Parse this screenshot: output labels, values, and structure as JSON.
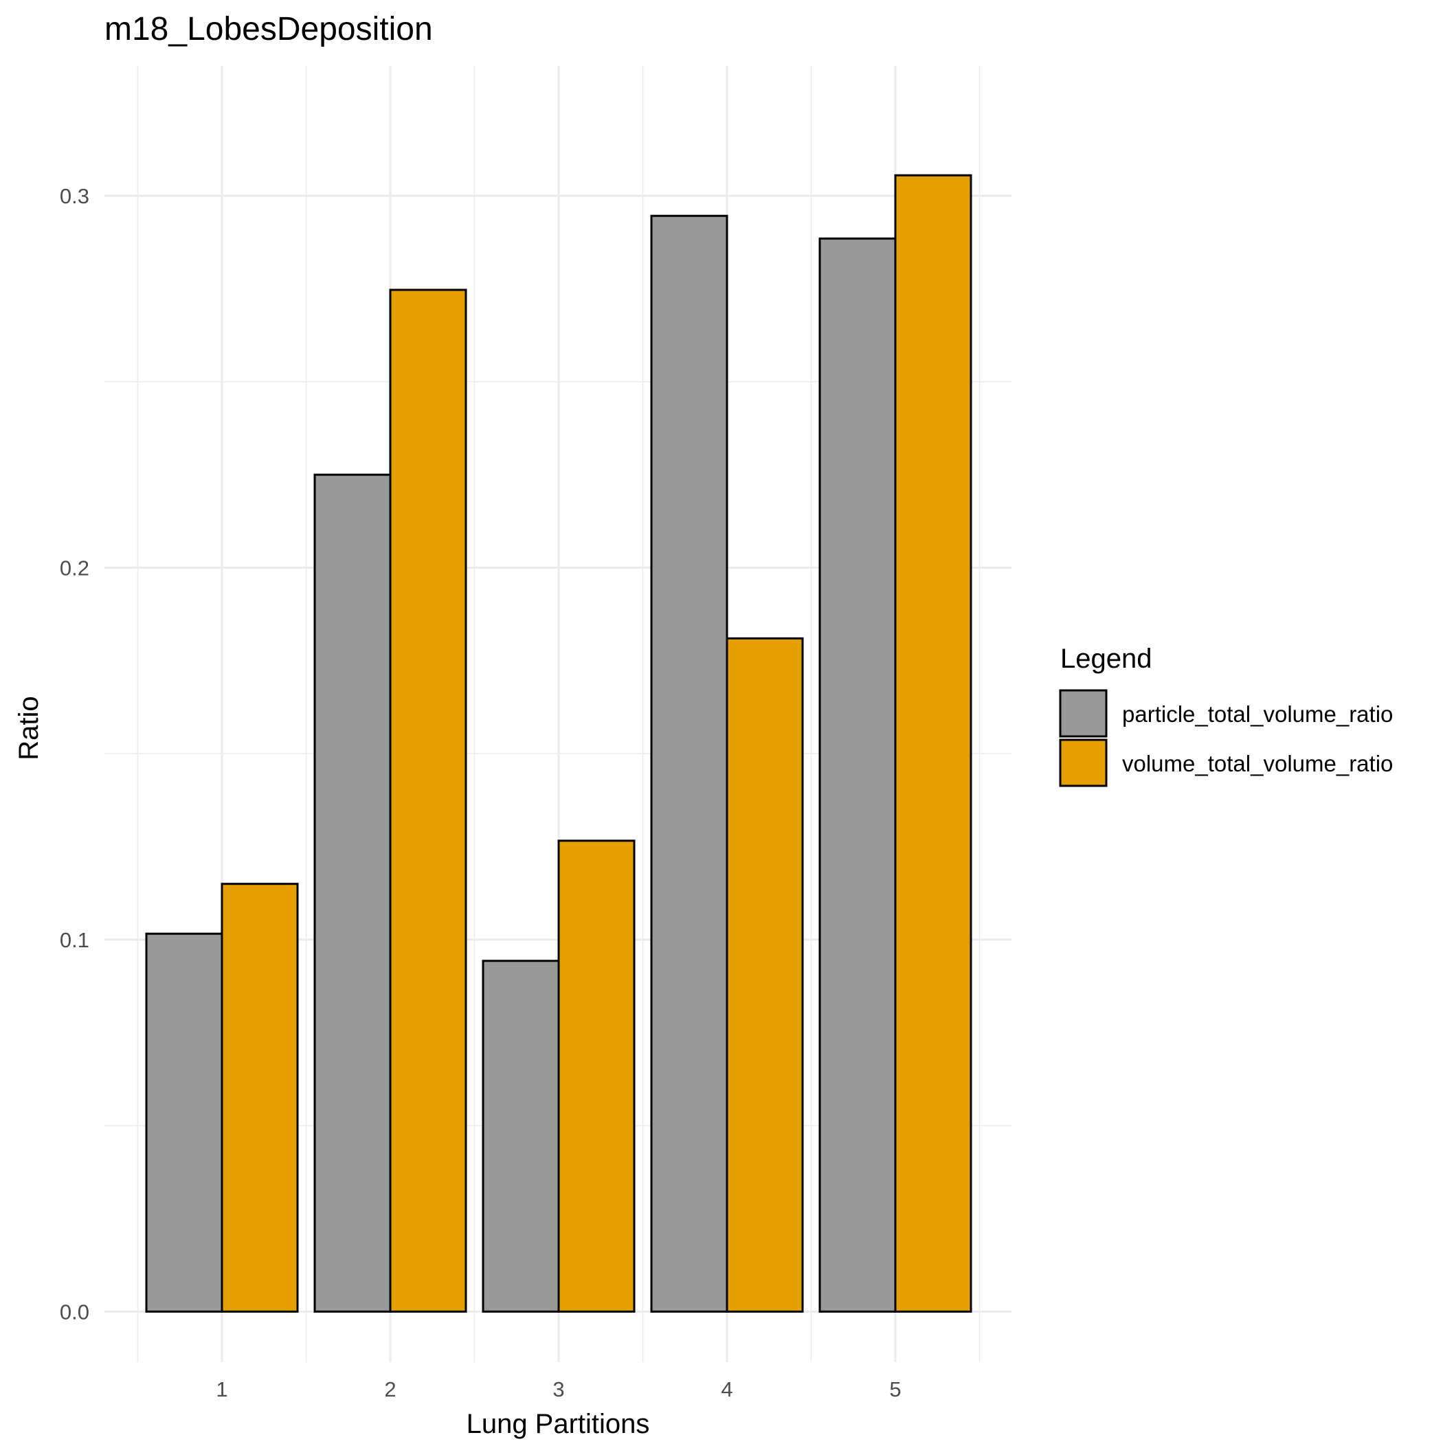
{
  "chart_data": {
    "type": "bar",
    "title": "m18_LobesDeposition",
    "xlabel": "Lung Partitions",
    "ylabel": "Ratio",
    "categories": [
      "1",
      "2",
      "3",
      "4",
      "5"
    ],
    "series": [
      {
        "name": "particle_total_volume_ratio",
        "color": "#999999",
        "values": [
          0.1016,
          0.225,
          0.0943,
          0.2946,
          0.2885
        ]
      },
      {
        "name": "volume_total_volume_ratio",
        "color": "#E69F00",
        "values": [
          0.115,
          0.2747,
          0.1266,
          0.181,
          0.3055
        ]
      }
    ],
    "ylim": [
      -0.0136,
      0.3349
    ],
    "yticks": [
      0.0,
      0.1,
      0.2,
      0.3
    ],
    "ytick_labels": [
      "0.0",
      "0.1",
      "0.2",
      "0.3"
    ],
    "grid": true,
    "legend": {
      "title": "Legend",
      "position": "right"
    }
  }
}
